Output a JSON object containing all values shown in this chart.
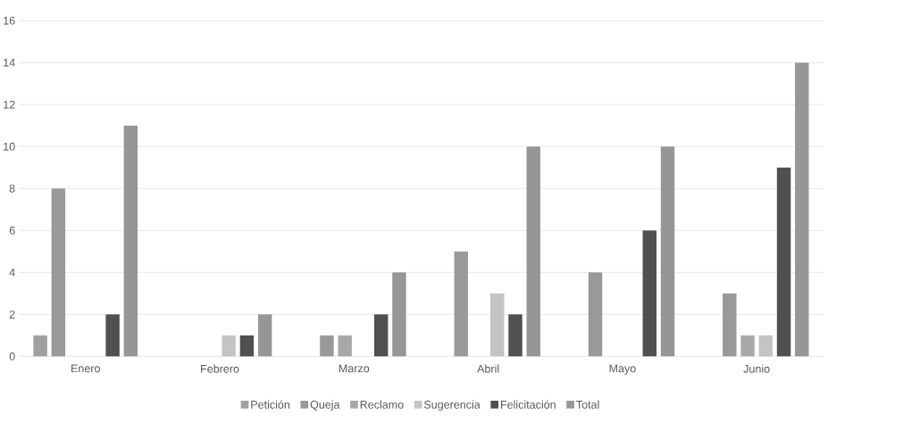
{
  "chart_data": {
    "type": "bar",
    "categories": [
      "Enero",
      "Febrero",
      "Marzo",
      "Abril",
      "Mayo",
      "Junio"
    ],
    "series": [
      {
        "name": "Petición",
        "color": "#a0a0a0",
        "values": [
          1,
          0,
          0,
          0,
          0,
          0
        ]
      },
      {
        "name": "Queja",
        "color": "#999999",
        "values": [
          8,
          0,
          1,
          5,
          4,
          3
        ]
      },
      {
        "name": "Reclamo",
        "color": "#a8a8a8",
        "values": [
          0,
          0,
          1,
          0,
          0,
          1
        ]
      },
      {
        "name": "Sugerencia",
        "color": "#c4c4c4",
        "values": [
          0,
          1,
          0,
          3,
          0,
          1
        ]
      },
      {
        "name": "Felicitación",
        "color": "#505050",
        "values": [
          2,
          1,
          2,
          2,
          6,
          9
        ]
      },
      {
        "name": "Total",
        "color": "#969696",
        "values": [
          11,
          2,
          4,
          10,
          10,
          14
        ]
      }
    ],
    "ylim": [
      0,
      16
    ],
    "yticks": [
      0,
      2,
      4,
      6,
      8,
      10,
      12,
      14,
      16
    ],
    "grid": "y",
    "legend": "bottom"
  }
}
